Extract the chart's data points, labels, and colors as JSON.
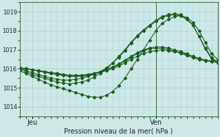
{
  "xlabel": "Pression niveau de la mer( hPa )",
  "bg_color": "#cce8e8",
  "grid_color": "#aacccc",
  "line_color": "#1a5c1a",
  "ylim": [
    1013.5,
    1019.5
  ],
  "yticks": [
    1014,
    1015,
    1016,
    1017,
    1018,
    1019
  ],
  "xlim": [
    0,
    32
  ],
  "xtick_pos": [
    2,
    22
  ],
  "xtick_labels": [
    "Jeu",
    "Ven"
  ],
  "vline_x": 22,
  "series": [
    [
      1016.0,
      1015.85,
      1015.7,
      1015.6,
      1015.5,
      1015.4,
      1015.3,
      1015.25,
      1015.2,
      1015.25,
      1015.3,
      1015.4,
      1015.55,
      1015.75,
      1016.0,
      1016.3,
      1016.65,
      1017.0,
      1017.4,
      1017.75,
      1018.05,
      1018.3,
      1018.55,
      1018.75,
      1018.85,
      1018.9,
      1018.85,
      1018.65,
      1018.3,
      1017.7,
      1017.1,
      1016.6,
      1016.35
    ],
    [
      1015.9,
      1015.75,
      1015.6,
      1015.45,
      1015.3,
      1015.15,
      1015.05,
      1014.95,
      1014.85,
      1014.75,
      1014.65,
      1014.55,
      1014.5,
      1014.5,
      1014.6,
      1014.8,
      1015.1,
      1015.5,
      1016.0,
      1016.5,
      1017.0,
      1017.5,
      1018.0,
      1018.4,
      1018.6,
      1018.75,
      1018.8,
      1018.7,
      1018.45,
      1018.0,
      1017.4,
      1016.8,
      1016.5
    ],
    [
      1016.0,
      1015.9,
      1015.8,
      1015.7,
      1015.6,
      1015.5,
      1015.45,
      1015.4,
      1015.4,
      1015.45,
      1015.5,
      1015.6,
      1015.7,
      1015.85,
      1016.05,
      1016.3,
      1016.6,
      1016.95,
      1017.35,
      1017.7,
      1018.0,
      1018.25,
      1018.5,
      1018.7,
      1018.8,
      1018.85,
      1018.8,
      1018.6,
      1018.3,
      1017.7,
      1017.05,
      1016.55,
      1016.3
    ],
    [
      1016.05,
      1016.0,
      1015.95,
      1015.9,
      1015.85,
      1015.8,
      1015.75,
      1015.7,
      1015.65,
      1015.65,
      1015.65,
      1015.7,
      1015.75,
      1015.8,
      1015.9,
      1016.0,
      1016.15,
      1016.3,
      1016.5,
      1016.65,
      1016.8,
      1016.9,
      1016.95,
      1017.0,
      1016.95,
      1016.9,
      1016.85,
      1016.75,
      1016.65,
      1016.55,
      1016.45,
      1016.4,
      1016.35
    ],
    [
      1016.05,
      1016.0,
      1015.95,
      1015.9,
      1015.85,
      1015.8,
      1015.75,
      1015.7,
      1015.65,
      1015.65,
      1015.65,
      1015.7,
      1015.75,
      1015.85,
      1015.95,
      1016.1,
      1016.25,
      1016.45,
      1016.65,
      1016.85,
      1017.0,
      1017.1,
      1017.15,
      1017.15,
      1017.1,
      1017.0,
      1016.9,
      1016.8,
      1016.65,
      1016.55,
      1016.45,
      1016.4,
      1016.35
    ],
    [
      1016.05,
      1016.0,
      1015.95,
      1015.88,
      1015.82,
      1015.75,
      1015.7,
      1015.65,
      1015.6,
      1015.6,
      1015.6,
      1015.65,
      1015.72,
      1015.82,
      1015.95,
      1016.08,
      1016.22,
      1016.4,
      1016.6,
      1016.8,
      1016.95,
      1017.05,
      1017.08,
      1017.08,
      1017.02,
      1016.92,
      1016.82,
      1016.7,
      1016.58,
      1016.48,
      1016.42,
      1016.38,
      1016.33
    ]
  ]
}
